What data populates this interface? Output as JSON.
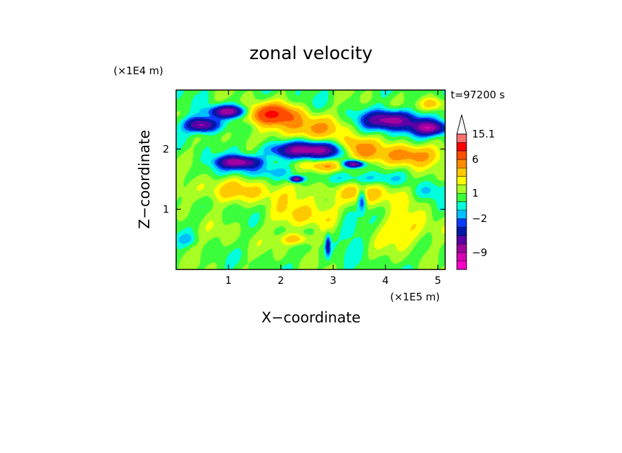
{
  "chart_data": {
    "type": "heatmap",
    "title": "zonal velocity",
    "xlabel": "X−coordinate",
    "ylabel": "Z−coordinate",
    "x_unit": "(×1E5 m)",
    "y_unit": "(×1E4 m)",
    "time_label": "t=97200 s",
    "xlim": [
      0,
      5.14
    ],
    "ylim": [
      0,
      2.98
    ],
    "x_ticks": [
      {
        "value": 1,
        "label": "1"
      },
      {
        "value": 2,
        "label": "2"
      },
      {
        "value": 3,
        "label": "3"
      },
      {
        "value": 4,
        "label": "4"
      },
      {
        "value": 5,
        "label": "5"
      }
    ],
    "y_ticks": [
      {
        "value": 1,
        "label": "1"
      },
      {
        "value": 2,
        "label": "2"
      }
    ],
    "colorbar": {
      "levels": [
        -13,
        -11,
        -9,
        -7,
        -5,
        -3,
        -2,
        -1,
        0,
        1,
        2,
        3,
        4.5,
        6,
        9,
        12,
        15.1
      ],
      "colors": [
        "#ff00c8",
        "#d600b4",
        "#a0009f",
        "#5a00a6",
        "#0019a8",
        "#0a3cff",
        "#00bfff",
        "#00ffdb",
        "#3cff3c",
        "#a8ff24",
        "#ffff00",
        "#ffc900",
        "#ff8a00",
        "#ff4d00",
        "#ff0000",
        "#ff7070",
        "#ffb8b8"
      ],
      "labels": [
        {
          "value": -9,
          "label": "−9"
        },
        {
          "value": -2,
          "label": "−2"
        },
        {
          "value": 1,
          "label": "1"
        },
        {
          "value": 6,
          "label": "6"
        },
        {
          "value": 15.1,
          "label": "15.1"
        }
      ],
      "extend_max": true
    },
    "features": [
      {
        "x": 0.5,
        "z": 2.4,
        "u": -9,
        "rx": 0.3,
        "rz": 0.12
      },
      {
        "x": 1.0,
        "z": 2.62,
        "u": -9,
        "rx": 0.35,
        "rz": 0.1
      },
      {
        "x": 1.2,
        "z": 1.78,
        "u": -9,
        "rx": 0.4,
        "rz": 0.1
      },
      {
        "x": 2.55,
        "z": 1.98,
        "u": -9,
        "rx": 0.7,
        "rz": 0.13
      },
      {
        "x": 3.4,
        "z": 1.75,
        "u": -9,
        "rx": 0.2,
        "rz": 0.06
      },
      {
        "x": 4.1,
        "z": 2.48,
        "u": -9,
        "rx": 0.5,
        "rz": 0.15
      },
      {
        "x": 4.85,
        "z": 2.35,
        "u": -9,
        "rx": 0.35,
        "rz": 0.12
      },
      {
        "x": 2.3,
        "z": 1.5,
        "u": -9,
        "rx": 0.12,
        "rz": 0.05
      },
      {
        "x": 1.8,
        "z": 2.58,
        "u": 8,
        "rx": 0.5,
        "rz": 0.16
      },
      {
        "x": 2.5,
        "z": 2.35,
        "u": 4,
        "rx": 0.7,
        "rz": 0.2
      },
      {
        "x": 3.45,
        "z": 2.0,
        "u": 6,
        "rx": 0.35,
        "rz": 0.18
      },
      {
        "x": 4.45,
        "z": 1.9,
        "u": 5,
        "rx": 0.6,
        "rz": 0.18
      },
      {
        "x": 2.9,
        "z": 1.72,
        "u": 4,
        "rx": 0.4,
        "rz": 0.1
      },
      {
        "x": 4.9,
        "z": 2.75,
        "u": 4,
        "rx": 0.25,
        "rz": 0.12
      },
      {
        "x": 1.2,
        "z": 1.3,
        "u": 2.5,
        "rx": 1.2,
        "rz": 0.2
      },
      {
        "x": 3.7,
        "z": 1.25,
        "u": 2.5,
        "rx": 0.9,
        "rz": 0.2
      },
      {
        "x": 2.5,
        "z": 0.9,
        "u": 2.5,
        "rx": 0.7,
        "rz": 0.25
      },
      {
        "x": 4.4,
        "z": 0.65,
        "u": 2.5,
        "rx": 0.6,
        "rz": 0.3
      },
      {
        "x": 2.3,
        "z": 0.5,
        "u": 3.5,
        "rx": 0.3,
        "rz": 0.1
      },
      {
        "x": 0.8,
        "z": 0.5,
        "u": 0.5,
        "rx": 0.8,
        "rz": 0.3
      },
      {
        "x": 1.6,
        "z": 1.62,
        "u": -1.5,
        "rx": 1.0,
        "rz": 0.1
      },
      {
        "x": 3.5,
        "z": 1.5,
        "u": -2,
        "rx": 0.8,
        "rz": 0.1
      },
      {
        "x": 4.8,
        "z": 1.3,
        "u": -2,
        "rx": 0.35,
        "rz": 0.15
      },
      {
        "x": 3.3,
        "z": 0.7,
        "u": -2,
        "rx": 0.25,
        "rz": 0.3
      },
      {
        "x": 0.2,
        "z": 0.5,
        "u": -1.5,
        "rx": 0.2,
        "rz": 0.1
      },
      {
        "x": 3.55,
        "z": 1.15,
        "u": -5,
        "rx": 0.08,
        "rz": 0.18
      },
      {
        "x": 2.9,
        "z": 0.4,
        "u": -5,
        "rx": 0.05,
        "rz": 0.18
      }
    ]
  }
}
